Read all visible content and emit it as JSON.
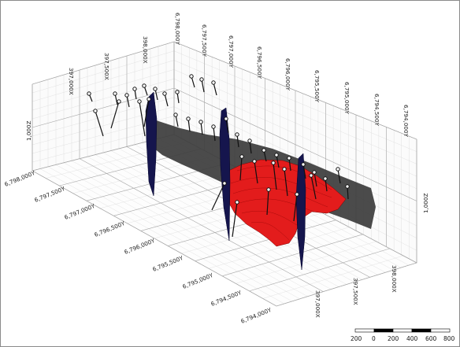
{
  "colors": {
    "grid": "#b9b9b9",
    "gridMinor": "#dcdcdc",
    "surface_grey": "#3a3a3a",
    "surface_red": "#e31c1c",
    "vertical_plane": "#1a1a5a",
    "drillhole": "#111111"
  },
  "axes": {
    "x_labels_top": [
      "397,000X",
      "397,500X",
      "398,000X"
    ],
    "x_labels_bottom": [
      "397,000X",
      "397,500X",
      "398,000X"
    ],
    "y_labels_top": [
      "6,798,000Y",
      "6,797,500Y",
      "6,797,000Y",
      "6,796,500Y",
      "6,796,000Y",
      "6,795,500Y",
      "6,795,000Y",
      "6,794,500Y",
      "6,794,000Y"
    ],
    "y_labels_left": [
      "6,798,000Y",
      "6,797,500Y",
      "6,797,000Y",
      "6,796,500Y",
      "6,796,000Y",
      "6,795,500Y",
      "6,795,000Y",
      "6,794,500Y",
      "6,794,000Y"
    ],
    "z_label_left": "1,000Z",
    "z_label_right": "1,000Z"
  },
  "scalebar": {
    "labels": [
      "200",
      "0",
      "200",
      "400",
      "600",
      "800"
    ]
  }
}
